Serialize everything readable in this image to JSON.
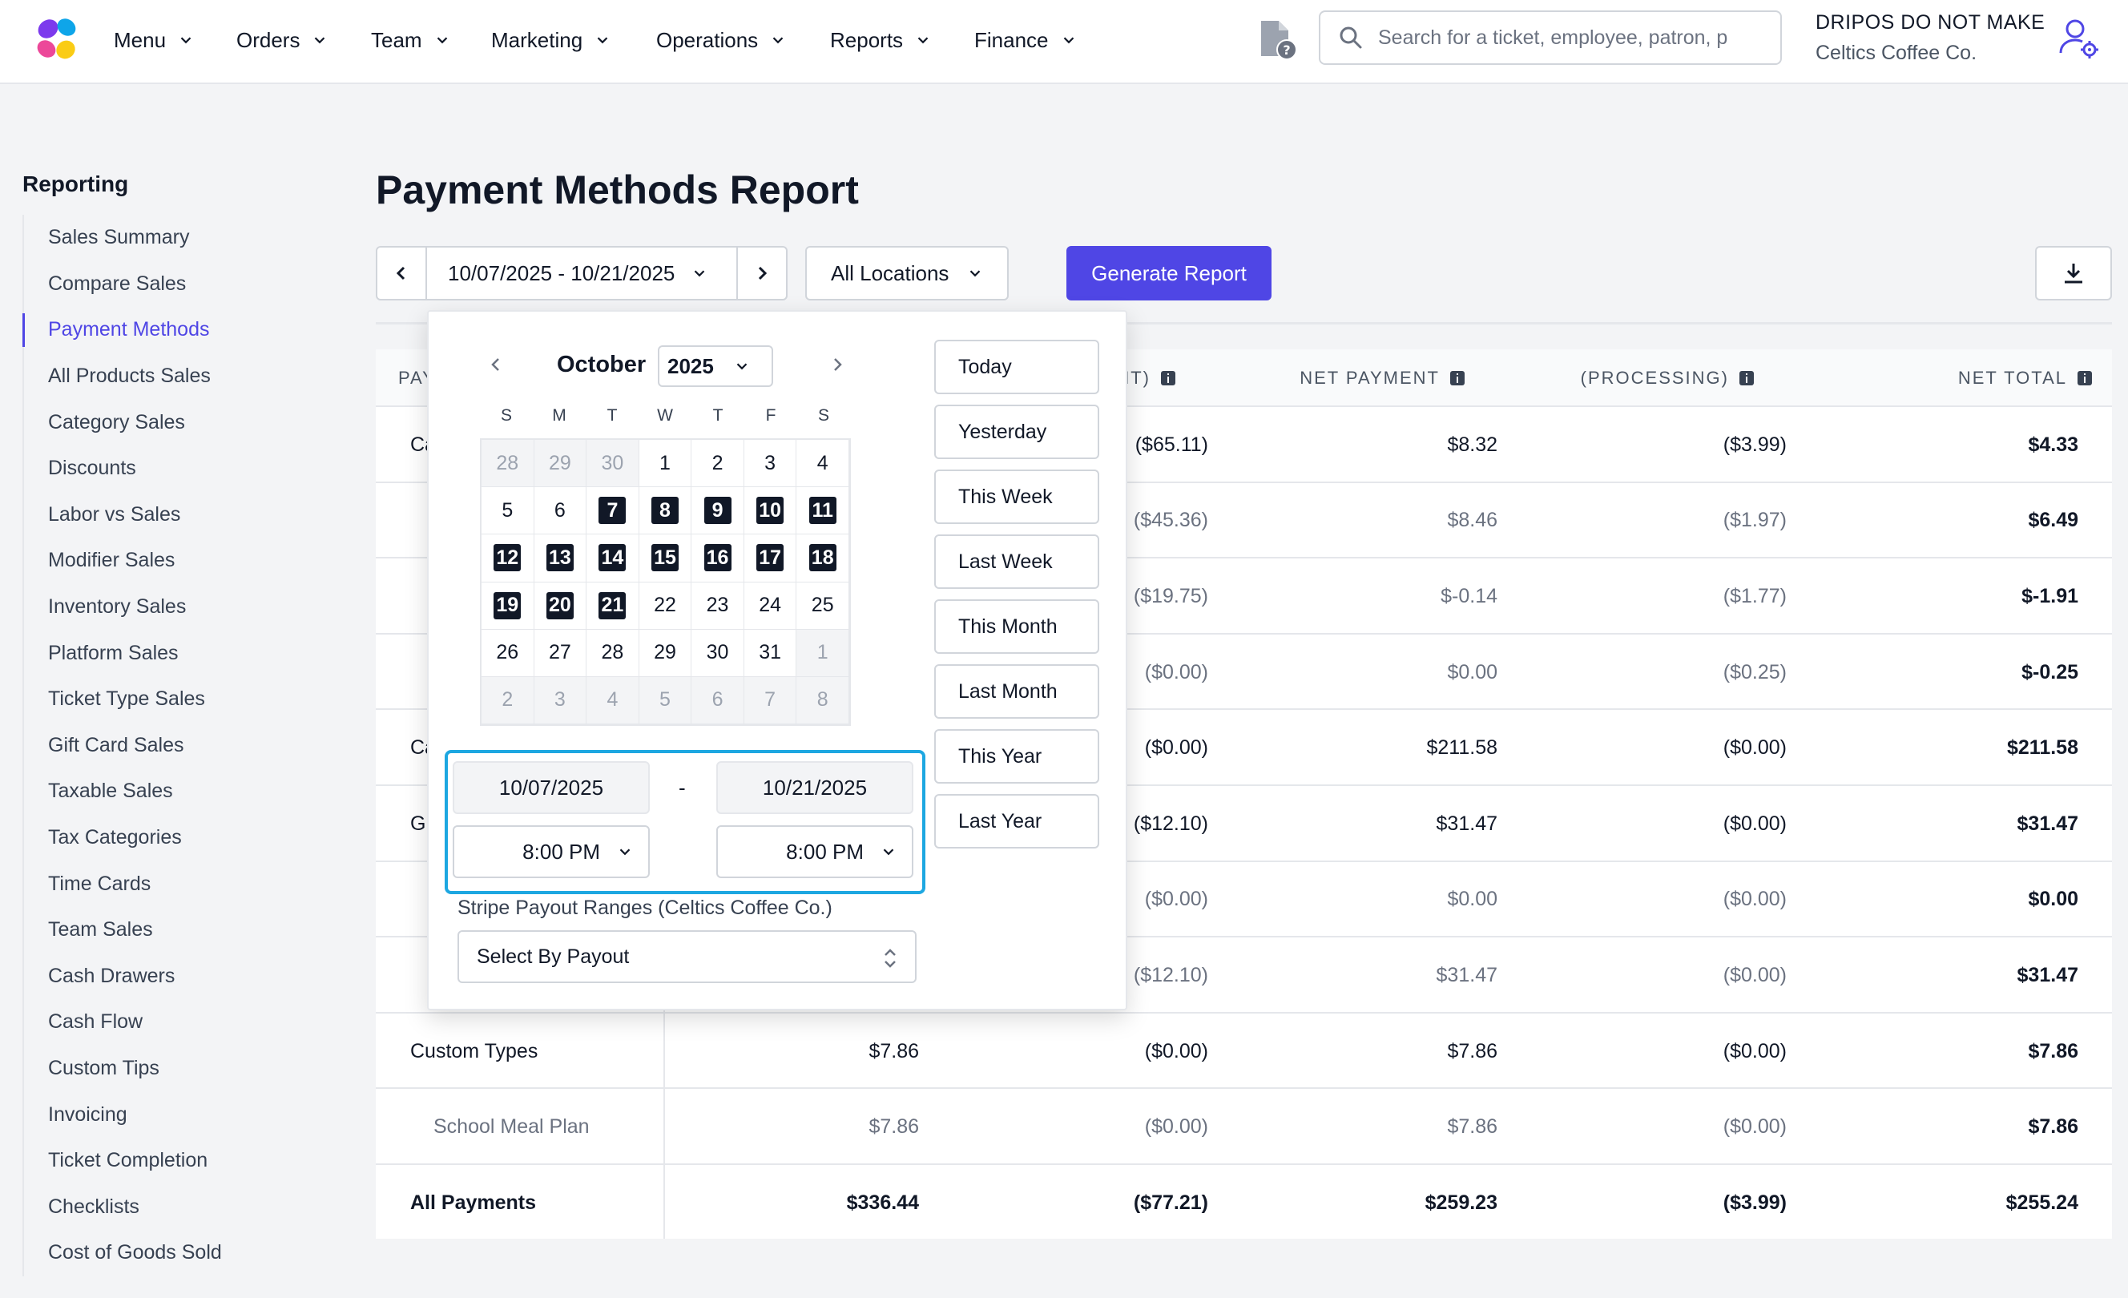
{
  "nav": {
    "items": [
      "Menu",
      "Orders",
      "Team",
      "Marketing",
      "Operations",
      "Reports",
      "Finance"
    ],
    "search_placeholder": "Search for a ticket, employee, patron, p",
    "account_name": "DRIPOS DO NOT MAKE",
    "account_sub": "Celtics Coffee Co."
  },
  "sidebar": {
    "title": "Reporting",
    "items": [
      "Sales Summary",
      "Compare Sales",
      "Payment Methods",
      "All Products Sales",
      "Category Sales",
      "Discounts",
      "Labor vs Sales",
      "Modifier Sales",
      "Inventory Sales",
      "Platform Sales",
      "Ticket Type Sales",
      "Gift Card Sales",
      "Taxable Sales",
      "Tax Categories",
      "Time Cards",
      "Team Sales",
      "Cash Drawers",
      "Cash Flow",
      "Custom Tips",
      "Invoicing",
      "Ticket Completion",
      "Checklists",
      "Cost of Goods Sold"
    ],
    "active": "Payment Methods"
  },
  "page": {
    "title": "Payment Methods Report",
    "date_range": "10/07/2025 - 10/21/2025",
    "location": "All Locations",
    "generate_label": "Generate Report"
  },
  "table": {
    "headers": {
      "first": "PAY",
      "discount": "OUNT)",
      "net_payment": "NET PAYMENT",
      "processing": "(PROCESSING)",
      "net_total": "NET TOTAL"
    },
    "rows": [
      {
        "name": "Ca",
        "gross": "",
        "discount": "($65.11)",
        "net_payment": "$8.32",
        "processing": "($3.99)",
        "net_total": "$4.33",
        "sub": false
      },
      {
        "name": "",
        "gross": "",
        "discount": "($45.36)",
        "net_payment": "$8.46",
        "processing": "($1.97)",
        "net_total": "$6.49",
        "sub": true
      },
      {
        "name": "",
        "gross": "",
        "discount": "($19.75)",
        "net_payment": "$-0.14",
        "processing": "($1.77)",
        "net_total": "$-1.91",
        "sub": true
      },
      {
        "name": "",
        "gross": "",
        "discount": "($0.00)",
        "net_payment": "$0.00",
        "processing": "($0.25)",
        "net_total": "$-0.25",
        "sub": true
      },
      {
        "name": "Ca",
        "gross": "",
        "discount": "($0.00)",
        "net_payment": "$211.58",
        "processing": "($0.00)",
        "net_total": "$211.58",
        "sub": false
      },
      {
        "name": "Gi",
        "gross": "",
        "discount": "($12.10)",
        "net_payment": "$31.47",
        "processing": "($0.00)",
        "net_total": "$31.47",
        "sub": false
      },
      {
        "name": "",
        "gross": "",
        "discount": "($0.00)",
        "net_payment": "$0.00",
        "processing": "($0.00)",
        "net_total": "$0.00",
        "sub": true
      },
      {
        "name": "",
        "gross": "",
        "discount": "($12.10)",
        "net_payment": "$31.47",
        "processing": "($0.00)",
        "net_total": "$31.47",
        "sub": true
      },
      {
        "name": "Custom Types",
        "gross": "$7.86",
        "discount": "($0.00)",
        "net_payment": "$7.86",
        "processing": "($0.00)",
        "net_total": "$7.86",
        "sub": false
      },
      {
        "name": "School Meal Plan",
        "gross": "$7.86",
        "discount": "($0.00)",
        "net_payment": "$7.86",
        "processing": "($0.00)",
        "net_total": "$7.86",
        "sub": true
      },
      {
        "name": "All Payments",
        "gross": "$336.44",
        "discount": "($77.21)",
        "net_payment": "$259.23",
        "processing": "($3.99)",
        "net_total": "$255.24",
        "sub": false,
        "total": true
      }
    ]
  },
  "datepicker": {
    "month": "October",
    "year": "2025",
    "weekdays": [
      "S",
      "M",
      "T",
      "W",
      "T",
      "F",
      "S"
    ],
    "days": [
      {
        "d": "28",
        "m": true
      },
      {
        "d": "29",
        "m": true
      },
      {
        "d": "30",
        "m": true
      },
      {
        "d": "1"
      },
      {
        "d": "2"
      },
      {
        "d": "3"
      },
      {
        "d": "4"
      },
      {
        "d": "5"
      },
      {
        "d": "6"
      },
      {
        "d": "7",
        "h": true
      },
      {
        "d": "8",
        "h": true
      },
      {
        "d": "9",
        "h": true
      },
      {
        "d": "10",
        "h": true
      },
      {
        "d": "11",
        "h": true
      },
      {
        "d": "12",
        "h": true
      },
      {
        "d": "13",
        "h": true
      },
      {
        "d": "14",
        "h": true
      },
      {
        "d": "15",
        "h": true
      },
      {
        "d": "16",
        "h": true
      },
      {
        "d": "17",
        "h": true
      },
      {
        "d": "18",
        "h": true
      },
      {
        "d": "19",
        "h": true
      },
      {
        "d": "20",
        "h": true
      },
      {
        "d": "21",
        "h": true
      },
      {
        "d": "22"
      },
      {
        "d": "23"
      },
      {
        "d": "24"
      },
      {
        "d": "25"
      },
      {
        "d": "26"
      },
      {
        "d": "27"
      },
      {
        "d": "28"
      },
      {
        "d": "29"
      },
      {
        "d": "30"
      },
      {
        "d": "31"
      },
      {
        "d": "1",
        "m": true
      },
      {
        "d": "2",
        "m": true
      },
      {
        "d": "3",
        "m": true
      },
      {
        "d": "4",
        "m": true
      },
      {
        "d": "5",
        "m": true
      },
      {
        "d": "6",
        "m": true
      },
      {
        "d": "7",
        "m": true
      },
      {
        "d": "8",
        "m": true
      }
    ],
    "start_date": "10/07/2025",
    "end_date": "10/21/2025",
    "start_time": "8:00 PM",
    "end_time": "8:00 PM",
    "separator": "-",
    "payout_label": "Stripe Payout Ranges (Celtics Coffee Co.)",
    "payout_value": "Select By Payout",
    "quick_ranges": [
      "Today",
      "Yesterday",
      "This Week",
      "Last Week",
      "This Month",
      "Last Month",
      "This Year",
      "Last Year"
    ]
  },
  "colors": {
    "accent": "#4f46e5",
    "highlight_border": "#1da7e1",
    "selected_day": "#111827"
  }
}
